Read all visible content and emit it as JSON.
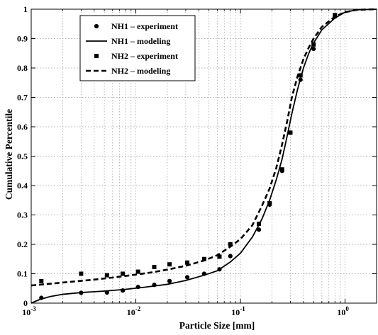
{
  "chart_data": {
    "type": "scatter",
    "title": "",
    "xlabel": "Particle Size [mm]",
    "ylabel": "Cumulative Percentile",
    "xscale": "log",
    "xlim": [
      0.001,
      2
    ],
    "ylim": [
      0,
      1
    ],
    "grid": true,
    "legend_position": "top-left",
    "x_ticks": [
      {
        "value": 0.001,
        "base": "10",
        "exp": "-3"
      },
      {
        "value": 0.01,
        "base": "10",
        "exp": "-2"
      },
      {
        "value": 0.1,
        "base": "10",
        "exp": "-1"
      },
      {
        "value": 1,
        "base": "10",
        "exp": "0"
      }
    ],
    "y_ticks": [
      {
        "value": 0,
        "label": "0"
      },
      {
        "value": 0.1,
        "label": "0.1"
      },
      {
        "value": 0.2,
        "label": "0.2"
      },
      {
        "value": 0.3,
        "label": "0.3"
      },
      {
        "value": 0.4,
        "label": "0.4"
      },
      {
        "value": 0.5,
        "label": "0.5"
      },
      {
        "value": 0.6,
        "label": "0.6"
      },
      {
        "value": 0.7,
        "label": "0.7"
      },
      {
        "value": 0.8,
        "label": "0.8"
      },
      {
        "value": 0.9,
        "label": "0.9"
      },
      {
        "value": 1,
        "label": "1"
      }
    ],
    "series": [
      {
        "name": "NH1 – experiment",
        "kind": "markers",
        "marker": "circle",
        "color": "#000000",
        "points": [
          {
            "x": 0.00125,
            "y": 0.018
          },
          {
            "x": 0.003,
            "y": 0.035
          },
          {
            "x": 0.0053,
            "y": 0.036
          },
          {
            "x": 0.0075,
            "y": 0.043
          },
          {
            "x": 0.0105,
            "y": 0.055
          },
          {
            "x": 0.015,
            "y": 0.062
          },
          {
            "x": 0.021,
            "y": 0.075
          },
          {
            "x": 0.031,
            "y": 0.088
          },
          {
            "x": 0.045,
            "y": 0.1
          },
          {
            "x": 0.063,
            "y": 0.115
          },
          {
            "x": 0.08,
            "y": 0.16
          },
          {
            "x": 0.15,
            "y": 0.25
          },
          {
            "x": 0.19,
            "y": 0.335
          },
          {
            "x": 0.25,
            "y": 0.45
          },
          {
            "x": 0.3,
            "y": 0.58
          },
          {
            "x": 0.375,
            "y": 0.76
          },
          {
            "x": 0.5,
            "y": 0.865
          },
          {
            "x": 0.8,
            "y": 0.975
          }
        ]
      },
      {
        "name": "NH1 – modeling",
        "kind": "line",
        "dash": "solid",
        "color": "#000000",
        "points": [
          {
            "x": 0.001,
            "y": 0.0
          },
          {
            "x": 0.0012,
            "y": 0.012
          },
          {
            "x": 0.0015,
            "y": 0.022
          },
          {
            "x": 0.002,
            "y": 0.03
          },
          {
            "x": 0.003,
            "y": 0.036
          },
          {
            "x": 0.005,
            "y": 0.041
          },
          {
            "x": 0.008,
            "y": 0.047
          },
          {
            "x": 0.012,
            "y": 0.054
          },
          {
            "x": 0.02,
            "y": 0.064
          },
          {
            "x": 0.03,
            "y": 0.077
          },
          {
            "x": 0.045,
            "y": 0.095
          },
          {
            "x": 0.06,
            "y": 0.11
          },
          {
            "x": 0.08,
            "y": 0.14
          },
          {
            "x": 0.1,
            "y": 0.17
          },
          {
            "x": 0.13,
            "y": 0.225
          },
          {
            "x": 0.16,
            "y": 0.285
          },
          {
            "x": 0.19,
            "y": 0.35
          },
          {
            "x": 0.22,
            "y": 0.42
          },
          {
            "x": 0.25,
            "y": 0.49
          },
          {
            "x": 0.28,
            "y": 0.57
          },
          {
            "x": 0.31,
            "y": 0.645
          },
          {
            "x": 0.35,
            "y": 0.725
          },
          {
            "x": 0.4,
            "y": 0.8
          },
          {
            "x": 0.45,
            "y": 0.85
          },
          {
            "x": 0.5,
            "y": 0.885
          },
          {
            "x": 0.6,
            "y": 0.93
          },
          {
            "x": 0.8,
            "y": 0.97
          },
          {
            "x": 1.0,
            "y": 0.99
          },
          {
            "x": 1.3,
            "y": 0.998
          },
          {
            "x": 2.0,
            "y": 1.0
          }
        ]
      },
      {
        "name": "NH2 – experiment",
        "kind": "markers",
        "marker": "square",
        "color": "#000000",
        "points": [
          {
            "x": 0.00125,
            "y": 0.075
          },
          {
            "x": 0.003,
            "y": 0.1
          },
          {
            "x": 0.0053,
            "y": 0.095
          },
          {
            "x": 0.0075,
            "y": 0.1
          },
          {
            "x": 0.0105,
            "y": 0.107
          },
          {
            "x": 0.015,
            "y": 0.123
          },
          {
            "x": 0.021,
            "y": 0.132
          },
          {
            "x": 0.031,
            "y": 0.138
          },
          {
            "x": 0.045,
            "y": 0.15
          },
          {
            "x": 0.063,
            "y": 0.158
          },
          {
            "x": 0.08,
            "y": 0.2
          },
          {
            "x": 0.15,
            "y": 0.27
          },
          {
            "x": 0.19,
            "y": 0.34
          },
          {
            "x": 0.25,
            "y": 0.455
          },
          {
            "x": 0.3,
            "y": 0.58
          },
          {
            "x": 0.375,
            "y": 0.775
          },
          {
            "x": 0.5,
            "y": 0.88
          },
          {
            "x": 0.8,
            "y": 0.98
          }
        ]
      },
      {
        "name": "NH2 – modeling",
        "kind": "line",
        "dash": "dashed",
        "color": "#000000",
        "points": [
          {
            "x": 0.001,
            "y": 0.06
          },
          {
            "x": 0.002,
            "y": 0.07
          },
          {
            "x": 0.004,
            "y": 0.08
          },
          {
            "x": 0.006,
            "y": 0.087
          },
          {
            "x": 0.01,
            "y": 0.097
          },
          {
            "x": 0.015,
            "y": 0.106
          },
          {
            "x": 0.02,
            "y": 0.114
          },
          {
            "x": 0.03,
            "y": 0.127
          },
          {
            "x": 0.045,
            "y": 0.145
          },
          {
            "x": 0.06,
            "y": 0.163
          },
          {
            "x": 0.08,
            "y": 0.192
          },
          {
            "x": 0.1,
            "y": 0.218
          },
          {
            "x": 0.13,
            "y": 0.265
          },
          {
            "x": 0.16,
            "y": 0.33
          },
          {
            "x": 0.19,
            "y": 0.39
          },
          {
            "x": 0.22,
            "y": 0.46
          },
          {
            "x": 0.25,
            "y": 0.54
          },
          {
            "x": 0.28,
            "y": 0.62
          },
          {
            "x": 0.31,
            "y": 0.7
          },
          {
            "x": 0.35,
            "y": 0.77
          },
          {
            "x": 0.4,
            "y": 0.83
          },
          {
            "x": 0.45,
            "y": 0.87
          },
          {
            "x": 0.5,
            "y": 0.9
          },
          {
            "x": 0.6,
            "y": 0.94
          },
          {
            "x": 0.8,
            "y": 0.975
          },
          {
            "x": 1.0,
            "y": 0.99
          },
          {
            "x": 1.3,
            "y": 0.998
          },
          {
            "x": 2.0,
            "y": 1.0
          }
        ]
      }
    ]
  }
}
